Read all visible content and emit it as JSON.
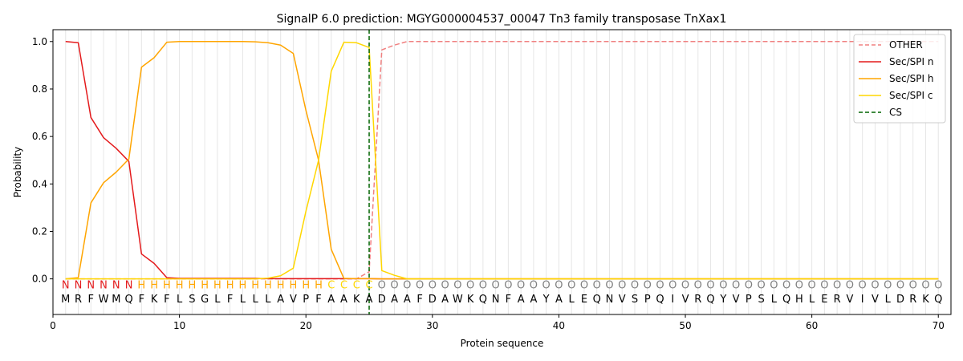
{
  "chart_data": {
    "type": "line",
    "title": "SignalP 6.0 prediction: MGYG000004537_00047 Tn3 family transposase TnXax1",
    "xlabel": "Protein sequence",
    "ylabel": "Probability",
    "xlim": [
      0,
      71
    ],
    "ylim": [
      -0.15,
      1.05
    ],
    "xticks": [
      "0",
      "10",
      "20",
      "30",
      "40",
      "50",
      "60",
      "70"
    ],
    "yticks": [
      "0.0",
      "0.2",
      "0.4",
      "0.6",
      "0.8",
      "1.0"
    ],
    "grid": "vertical lines at each residue",
    "legend_position": "top-right",
    "sequence": [
      "M",
      "R",
      "F",
      "W",
      "M",
      "Q",
      "F",
      "K",
      "F",
      "L",
      "S",
      "G",
      "L",
      "F",
      "L",
      "L",
      "L",
      "A",
      "V",
      "P",
      "F",
      "A",
      "A",
      "K",
      "A",
      "D",
      "A",
      "A",
      "F",
      "D",
      "A",
      "W",
      "K",
      "Q",
      "N",
      "F",
      "A",
      "A",
      "Y",
      "A",
      "L",
      "E",
      "Q",
      "N",
      "V",
      "S",
      "P",
      "Q",
      "I",
      "V",
      "R",
      "Q",
      "Y",
      "V",
      "P",
      "S",
      "L",
      "Q",
      "H",
      "L",
      "E",
      "R",
      "V",
      "I",
      "V",
      "L",
      "D",
      "R",
      "K",
      "Q"
    ],
    "region_labels": [
      "N",
      "N",
      "N",
      "N",
      "N",
      "N",
      "H",
      "H",
      "H",
      "H",
      "H",
      "H",
      "H",
      "H",
      "H",
      "H",
      "H",
      "H",
      "H",
      "H",
      "H",
      "C",
      "C",
      "C",
      "C",
      "O",
      "O",
      "O",
      "O",
      "O",
      "O",
      "O",
      "O",
      "O",
      "O",
      "O",
      "O",
      "O",
      "O",
      "O",
      "O",
      "O",
      "O",
      "O",
      "O",
      "O",
      "O",
      "O",
      "O",
      "O",
      "O",
      "O",
      "O",
      "O",
      "O",
      "O",
      "O",
      "O",
      "O",
      "O",
      "O",
      "O",
      "O",
      "O",
      "O",
      "O",
      "O",
      "O",
      "O",
      "O"
    ],
    "region_colors": {
      "N": "#e41a1c",
      "H": "#ffa500",
      "C": "#ffd700",
      "O": "#808080"
    },
    "cleavage_site": 25,
    "series": [
      {
        "name": "OTHER",
        "color": "#f08080",
        "style": "dashed",
        "values": [
          0,
          0,
          0,
          0,
          0,
          0,
          0,
          0,
          0,
          0,
          0,
          0,
          0,
          0,
          0,
          0,
          0,
          0,
          0,
          0,
          0,
          0,
          0,
          0,
          0.03,
          0.965,
          0.985,
          1.0,
          1.0,
          1.0,
          1.0,
          1.0,
          1.0,
          1.0,
          1.0,
          1.0,
          1.0,
          1.0,
          1.0,
          1.0,
          1.0,
          1.0,
          1.0,
          1.0,
          1.0,
          1.0,
          1.0,
          1.0,
          1.0,
          1.0,
          1.0,
          1.0,
          1.0,
          1.0,
          1.0,
          1.0,
          1.0,
          1.0,
          1.0,
          1.0,
          1.0,
          1.0,
          1.0,
          1.0,
          1.0,
          1.0,
          1.0,
          1.0,
          1.0,
          1.0
        ]
      },
      {
        "name": "Sec/SPI n",
        "color": "#e41a1c",
        "style": "solid",
        "values": [
          1.0,
          0.995,
          0.68,
          0.595,
          0.55,
          0.495,
          0.105,
          0.065,
          0.005,
          0.002,
          0.002,
          0.002,
          0.002,
          0.002,
          0.002,
          0.002,
          0.001,
          0.001,
          0.001,
          0.001,
          0.001,
          0.001,
          0.001,
          0.001,
          0.001,
          0,
          0,
          0,
          0,
          0,
          0,
          0,
          0,
          0,
          0,
          0,
          0,
          0,
          0,
          0,
          0,
          0,
          0,
          0,
          0,
          0,
          0,
          0,
          0,
          0,
          0,
          0,
          0,
          0,
          0,
          0,
          0,
          0,
          0,
          0,
          0,
          0,
          0,
          0,
          0,
          0,
          0,
          0,
          0,
          0
        ]
      },
      {
        "name": "Sec/SPI h",
        "color": "#ffa500",
        "style": "solid",
        "values": [
          0,
          0.005,
          0.32,
          0.405,
          0.45,
          0.505,
          0.892,
          0.932,
          0.997,
          1.0,
          1.0,
          1.0,
          1.0,
          1.0,
          1.0,
          0.999,
          0.995,
          0.985,
          0.95,
          0.71,
          0.5,
          0.125,
          0.002,
          0.001,
          0.001,
          0,
          0,
          0,
          0,
          0,
          0,
          0,
          0,
          0,
          0,
          0,
          0,
          0,
          0,
          0,
          0,
          0,
          0,
          0,
          0,
          0,
          0,
          0,
          0,
          0,
          0,
          0,
          0,
          0,
          0,
          0,
          0,
          0,
          0,
          0,
          0,
          0,
          0,
          0,
          0,
          0,
          0,
          0,
          0,
          0
        ]
      },
      {
        "name": "Sec/SPI c",
        "color": "#ffd700",
        "style": "solid",
        "values": [
          0,
          0,
          0,
          0,
          0,
          0,
          0,
          0,
          0,
          0,
          0,
          0,
          0,
          0,
          0,
          0,
          0.003,
          0.013,
          0.045,
          0.285,
          0.5,
          0.875,
          0.997,
          0.995,
          0.975,
          0.035,
          0.015,
          0,
          0,
          0,
          0,
          0,
          0,
          0,
          0,
          0,
          0,
          0,
          0,
          0,
          0,
          0,
          0,
          0,
          0,
          0,
          0,
          0,
          0,
          0,
          0,
          0,
          0,
          0,
          0,
          0,
          0,
          0,
          0,
          0,
          0,
          0,
          0,
          0,
          0,
          0,
          0,
          0,
          0,
          0
        ]
      }
    ],
    "legend": [
      {
        "label": "OTHER",
        "color": "#f08080",
        "style": "dashed"
      },
      {
        "label": "Sec/SPI n",
        "color": "#e41a1c",
        "style": "solid"
      },
      {
        "label": "Sec/SPI h",
        "color": "#ffa500",
        "style": "solid"
      },
      {
        "label": "Sec/SPI c",
        "color": "#ffd700",
        "style": "solid"
      },
      {
        "label": "CS",
        "color": "#006400",
        "style": "dashed"
      }
    ]
  }
}
